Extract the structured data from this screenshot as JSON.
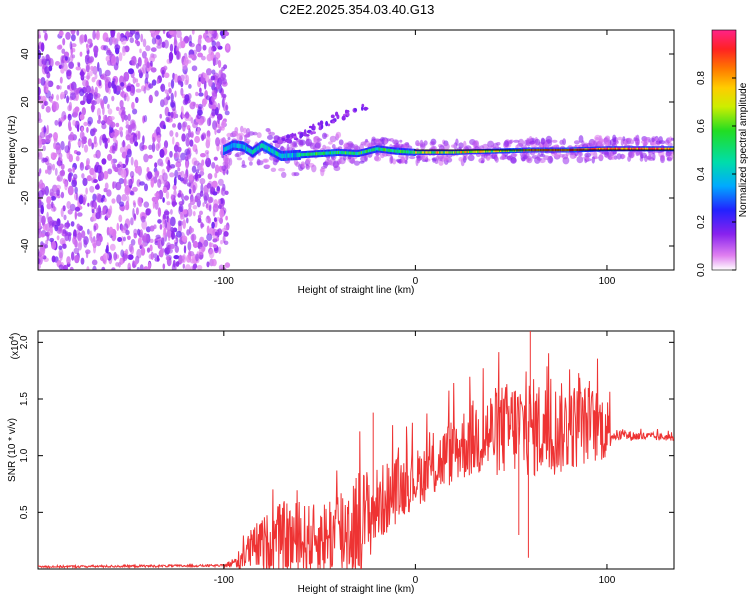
{
  "title": "C2E2.2025.354.03.40.G13",
  "chart_data": [
    {
      "type": "heatmap",
      "xlabel": "Height of straight line (km)",
      "ylabel": "Frequency (Hz)",
      "xlim": [
        -197,
        135
      ],
      "ylim": [
        -50,
        50
      ],
      "xticks": [
        -100,
        0,
        100
      ],
      "yticks": [
        40,
        20,
        0,
        -20,
        -40
      ],
      "noise_region_x": [
        -197,
        -100
      ],
      "track": [
        {
          "x": -100,
          "y": 0.0
        },
        {
          "x": -95,
          "y": 2.0
        },
        {
          "x": -90,
          "y": 1.5
        },
        {
          "x": -85,
          "y": -1.0
        },
        {
          "x": -80,
          "y": 2.0
        },
        {
          "x": -70,
          "y": -2.5
        },
        {
          "x": -60,
          "y": -2.0
        },
        {
          "x": -50,
          "y": -1.5
        },
        {
          "x": -40,
          "y": -1.0
        },
        {
          "x": -30,
          "y": -1.5
        },
        {
          "x": -20,
          "y": 0.5
        },
        {
          "x": -10,
          "y": -0.5
        },
        {
          "x": 0,
          "y": -1.0
        },
        {
          "x": 20,
          "y": -1.0
        },
        {
          "x": 40,
          "y": -0.5
        },
        {
          "x": 60,
          "y": 0.0
        },
        {
          "x": 80,
          "y": 0.0
        },
        {
          "x": 100,
          "y": 0.5
        },
        {
          "x": 135,
          "y": 0.5
        }
      ],
      "side_track": [
        {
          "x": -75,
          "y": 2.0
        },
        {
          "x": -60,
          "y": 6.0
        },
        {
          "x": -50,
          "y": 10.0
        },
        {
          "x": -40,
          "y": 14.0
        },
        {
          "x": -30,
          "y": 16.0
        },
        {
          "x": -25,
          "y": 19.0
        }
      ],
      "colorbar": {
        "label": "Normalized spectral amplitude",
        "range": [
          0.0,
          1.0
        ],
        "ticks": [
          "0.0",
          "0.2",
          "0.4",
          "0.6",
          "0.8"
        ],
        "tick_values": [
          0.0,
          0.2,
          0.4,
          0.6,
          0.8
        ]
      }
    },
    {
      "type": "line",
      "xlabel": "Height of straight line (km)",
      "ylabel": "SNR (10 * v/v)",
      "ymultiplier": "(x10",
      "ymultiplier_exp": "4",
      "ymultiplier_close": ")",
      "xlim": [
        -197,
        135
      ],
      "ylim": [
        0,
        2.1
      ],
      "xticks": [
        -100,
        0,
        100
      ],
      "yticks": [
        "0.5",
        "1.0",
        "1.5",
        "2.0"
      ],
      "ytick_values": [
        0.5,
        1.0,
        1.5,
        2.0
      ],
      "series": [
        {
          "name": "SNR",
          "color": "#ee3333",
          "baseline_points": [
            {
              "x": -197,
              "y": 0.02
            },
            {
              "x": -100,
              "y": 0.03
            },
            {
              "x": -93,
              "y": 0.06
            },
            {
              "x": -88,
              "y": 0.15
            },
            {
              "x": -80,
              "y": 0.22
            },
            {
              "x": -70,
              "y": 0.28
            },
            {
              "x": -60,
              "y": 0.25
            },
            {
              "x": -50,
              "y": 0.27
            },
            {
              "x": -40,
              "y": 0.32
            },
            {
              "x": -30,
              "y": 0.4
            },
            {
              "x": -20,
              "y": 0.55
            },
            {
              "x": -10,
              "y": 0.7
            },
            {
              "x": 0,
              "y": 0.8
            },
            {
              "x": 10,
              "y": 0.9
            },
            {
              "x": 20,
              "y": 1.05
            },
            {
              "x": 30,
              "y": 1.15
            },
            {
              "x": 40,
              "y": 1.2
            },
            {
              "x": 50,
              "y": 1.25
            },
            {
              "x": 60,
              "y": 1.25
            },
            {
              "x": 70,
              "y": 1.22
            },
            {
              "x": 80,
              "y": 1.25
            },
            {
              "x": 90,
              "y": 1.28
            },
            {
              "x": 100,
              "y": 1.25
            },
            {
              "x": 103,
              "y": 1.18
            },
            {
              "x": 135,
              "y": 1.16
            }
          ],
          "noise_amplitude": [
            {
              "x": -197,
              "a": 0.01
            },
            {
              "x": -100,
              "a": 0.01
            },
            {
              "x": -95,
              "a": 0.05
            },
            {
              "x": -85,
              "a": 0.2
            },
            {
              "x": -65,
              "a": 0.35
            },
            {
              "x": -50,
              "a": 0.3
            },
            {
              "x": -40,
              "a": 0.45
            },
            {
              "x": -30,
              "a": 0.5
            },
            {
              "x": -20,
              "a": 0.35
            },
            {
              "x": 0,
              "a": 0.25
            },
            {
              "x": 20,
              "a": 0.3
            },
            {
              "x": 40,
              "a": 0.4
            },
            {
              "x": 60,
              "a": 0.45
            },
            {
              "x": 80,
              "a": 0.4
            },
            {
              "x": 100,
              "a": 0.3
            },
            {
              "x": 103,
              "a": 0.05
            },
            {
              "x": 135,
              "a": 0.03
            }
          ],
          "spikes": [
            {
              "x": -22,
              "y": 1.38
            },
            {
              "x": 60,
              "y": 2.1
            },
            {
              "x": 59,
              "y": 0.1
            },
            {
              "x": 54,
              "y": 0.3
            }
          ]
        }
      ]
    }
  ]
}
